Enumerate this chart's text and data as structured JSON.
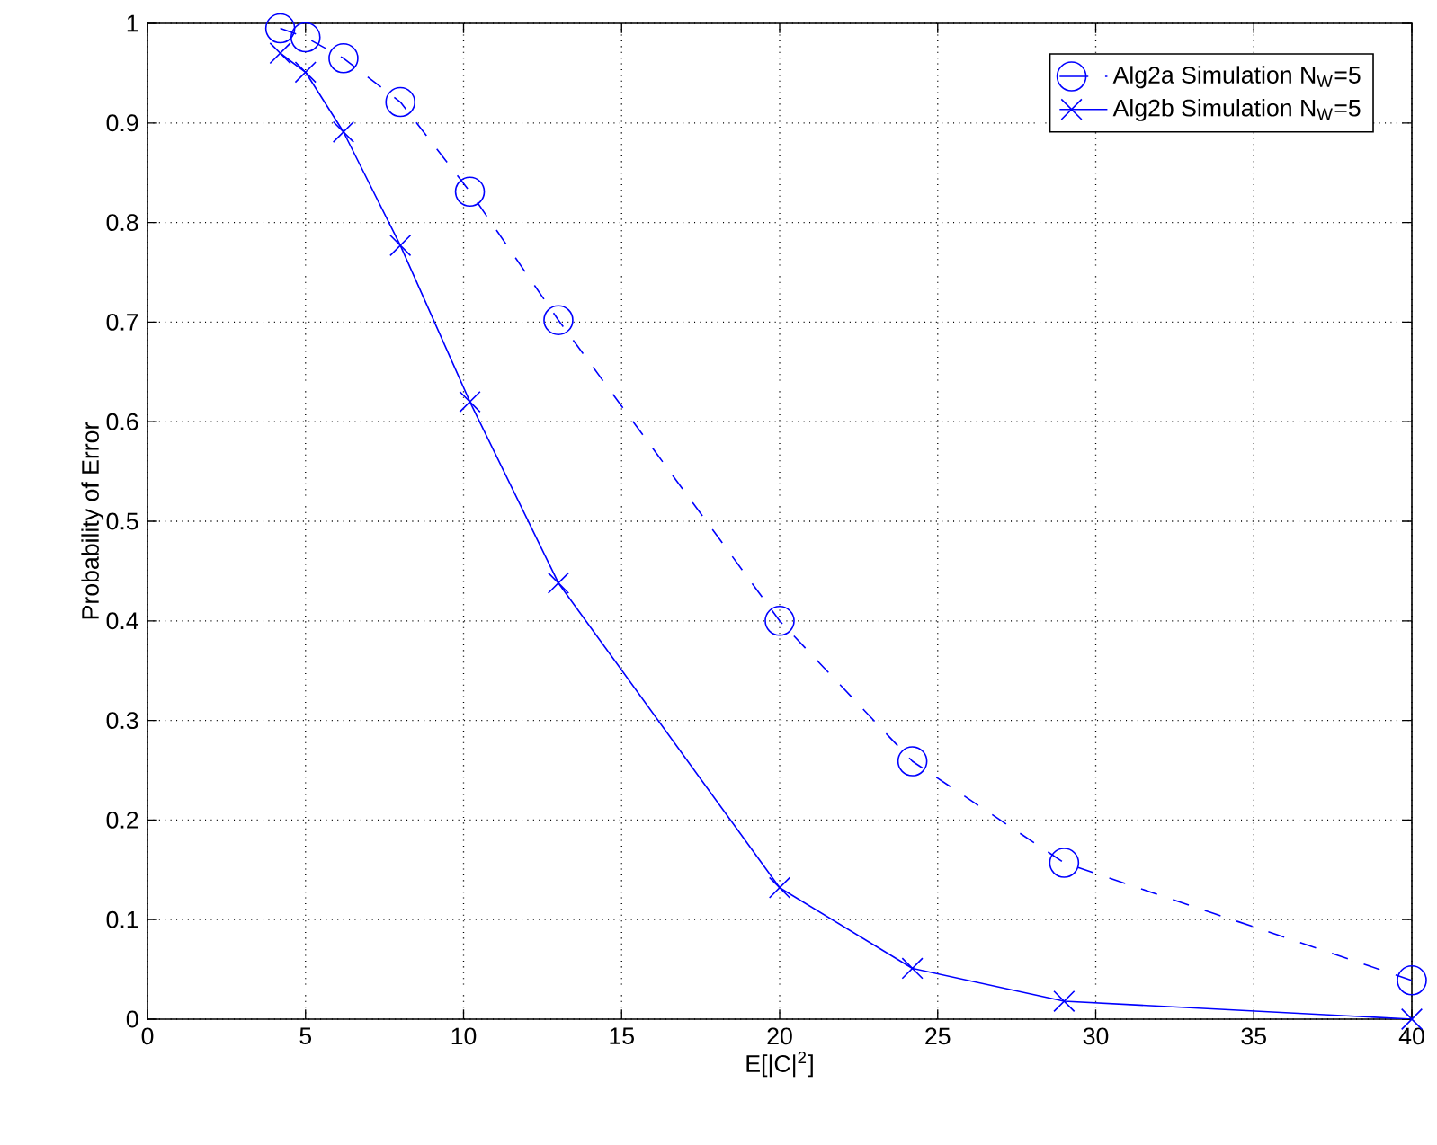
{
  "chart_data": {
    "type": "line",
    "xlabel": "E[|C|$^{2}$]",
    "ylabel": "Probability of Error",
    "xlim": [
      0,
      40
    ],
    "ylim": [
      0,
      1
    ],
    "xticks": [
      0,
      5,
      10,
      15,
      20,
      25,
      30,
      35,
      40
    ],
    "yticks": [
      0,
      0.1,
      0.2,
      0.3,
      0.4,
      0.5,
      0.6,
      0.7,
      0.8,
      0.9,
      1
    ],
    "grid": true,
    "legend": "top right",
    "series": [
      {
        "name": "Alg2a Simulation N$_{W}$=5",
        "color": "#0000ff",
        "marker": "circle",
        "line_style": "dashed",
        "x": [
          4.2,
          5,
          6.2,
          8,
          10.2,
          13,
          20,
          24.2,
          29,
          40
        ],
        "values": [
          0.995,
          0.986,
          0.965,
          0.921,
          0.831,
          0.702,
          0.4,
          0.259,
          0.157,
          0.039
        ]
      },
      {
        "name": "Alg2b Simulation N$_{W}$=5",
        "color": "#0000ff",
        "marker": "cross",
        "line_style": "solid",
        "x": [
          4.2,
          5,
          6.2,
          8,
          10.2,
          13,
          20,
          24.2,
          29,
          40
        ],
        "values": [
          0.97,
          0.951,
          0.891,
          0.777,
          0.62,
          0.438,
          0.132,
          0.051,
          0.018,
          0.0
        ]
      }
    ]
  }
}
